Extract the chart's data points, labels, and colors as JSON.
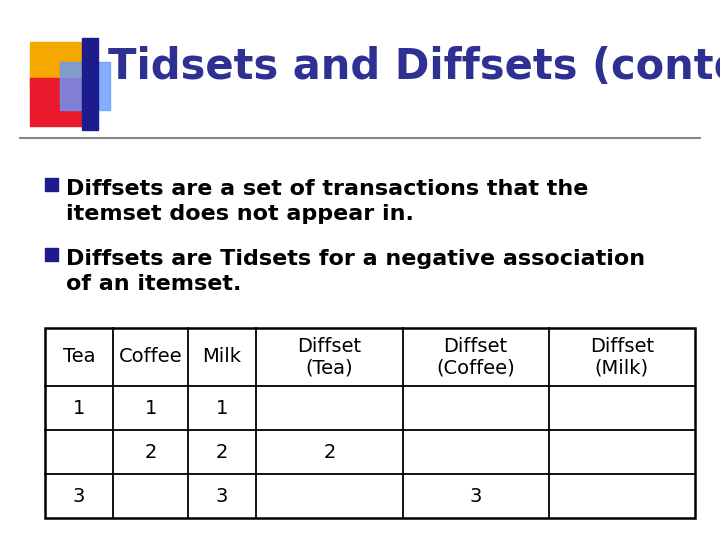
{
  "title": "Tidsets and Diffsets (contd.)",
  "title_color": "#2E3192",
  "title_fontsize": 30,
  "background_color": "#FFFFFF",
  "bullet1_line1": "Diffsets are a set of transactions that the",
  "bullet1_line2": "itemset does not appear in.",
  "bullet2_line1": "Diffsets are Tidsets for a negative association",
  "bullet2_line2": "of an itemset.",
  "bullet_fontsize": 16,
  "bullet_color": "#000000",
  "bullet_square_color": "#1C1C8C",
  "table_headers": [
    "Tea",
    "Coffee",
    "Milk",
    "Diffset\n(Tea)",
    "Diffset\n(Coffee)",
    "Diffset\n(Milk)"
  ],
  "table_data": [
    [
      "1",
      "1",
      "1",
      "",
      "",
      ""
    ],
    [
      "",
      "2",
      "2",
      "2",
      "",
      ""
    ],
    [
      "3",
      "",
      "3",
      "",
      "3",
      ""
    ]
  ],
  "table_fontsize": 14,
  "logo_colors": {
    "yellow": "#F5A800",
    "red": "#E8192C",
    "blue_light": "#6699FF",
    "blue_dark": "#1C1C8C"
  },
  "separator_color": "#888888"
}
